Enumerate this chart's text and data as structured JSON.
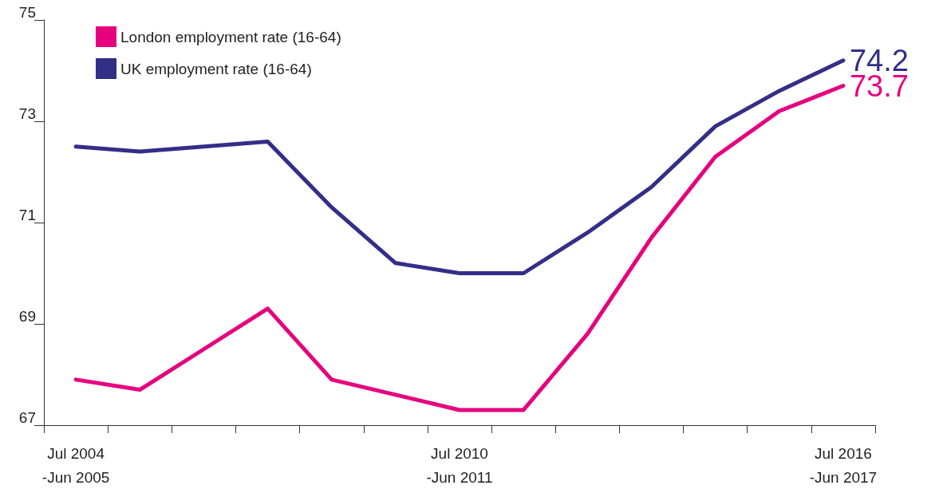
{
  "chart_data": {
    "type": "line",
    "categories": [
      "Jul 2004\n-Jun 2005",
      null,
      null,
      null,
      null,
      null,
      "Jul 2010\n-Jun 2011",
      null,
      null,
      null,
      null,
      null,
      "Jul 2016\n-Jun 2017"
    ],
    "series": [
      {
        "name": "London employment rate (16-64)",
        "color": "#e6007e",
        "values": [
          67.9,
          67.7,
          68.5,
          69.3,
          67.9,
          67.6,
          67.3,
          67.3,
          68.8,
          70.7,
          72.3,
          73.2,
          73.7
        ],
        "value_labels": [
          null,
          null,
          null,
          null,
          null,
          null,
          null,
          null,
          null,
          null,
          null,
          null,
          "73.7"
        ]
      },
      {
        "name": "UK employment rate (16-64)",
        "color": "#332e88",
        "values": [
          72.5,
          72.4,
          72.5,
          72.6,
          71.3,
          70.2,
          70.0,
          70.0,
          70.8,
          71.7,
          72.9,
          73.6,
          74.2
        ],
        "value_labels": [
          null,
          null,
          null,
          null,
          null,
          null,
          null,
          null,
          null,
          null,
          null,
          null,
          "74.2"
        ]
      }
    ],
    "ylim": [
      67,
      75
    ],
    "yticks": [
      67,
      69,
      71,
      73,
      75
    ],
    "grid": false,
    "legend": "top left",
    "marker": "none",
    "line_style": "solid"
  }
}
